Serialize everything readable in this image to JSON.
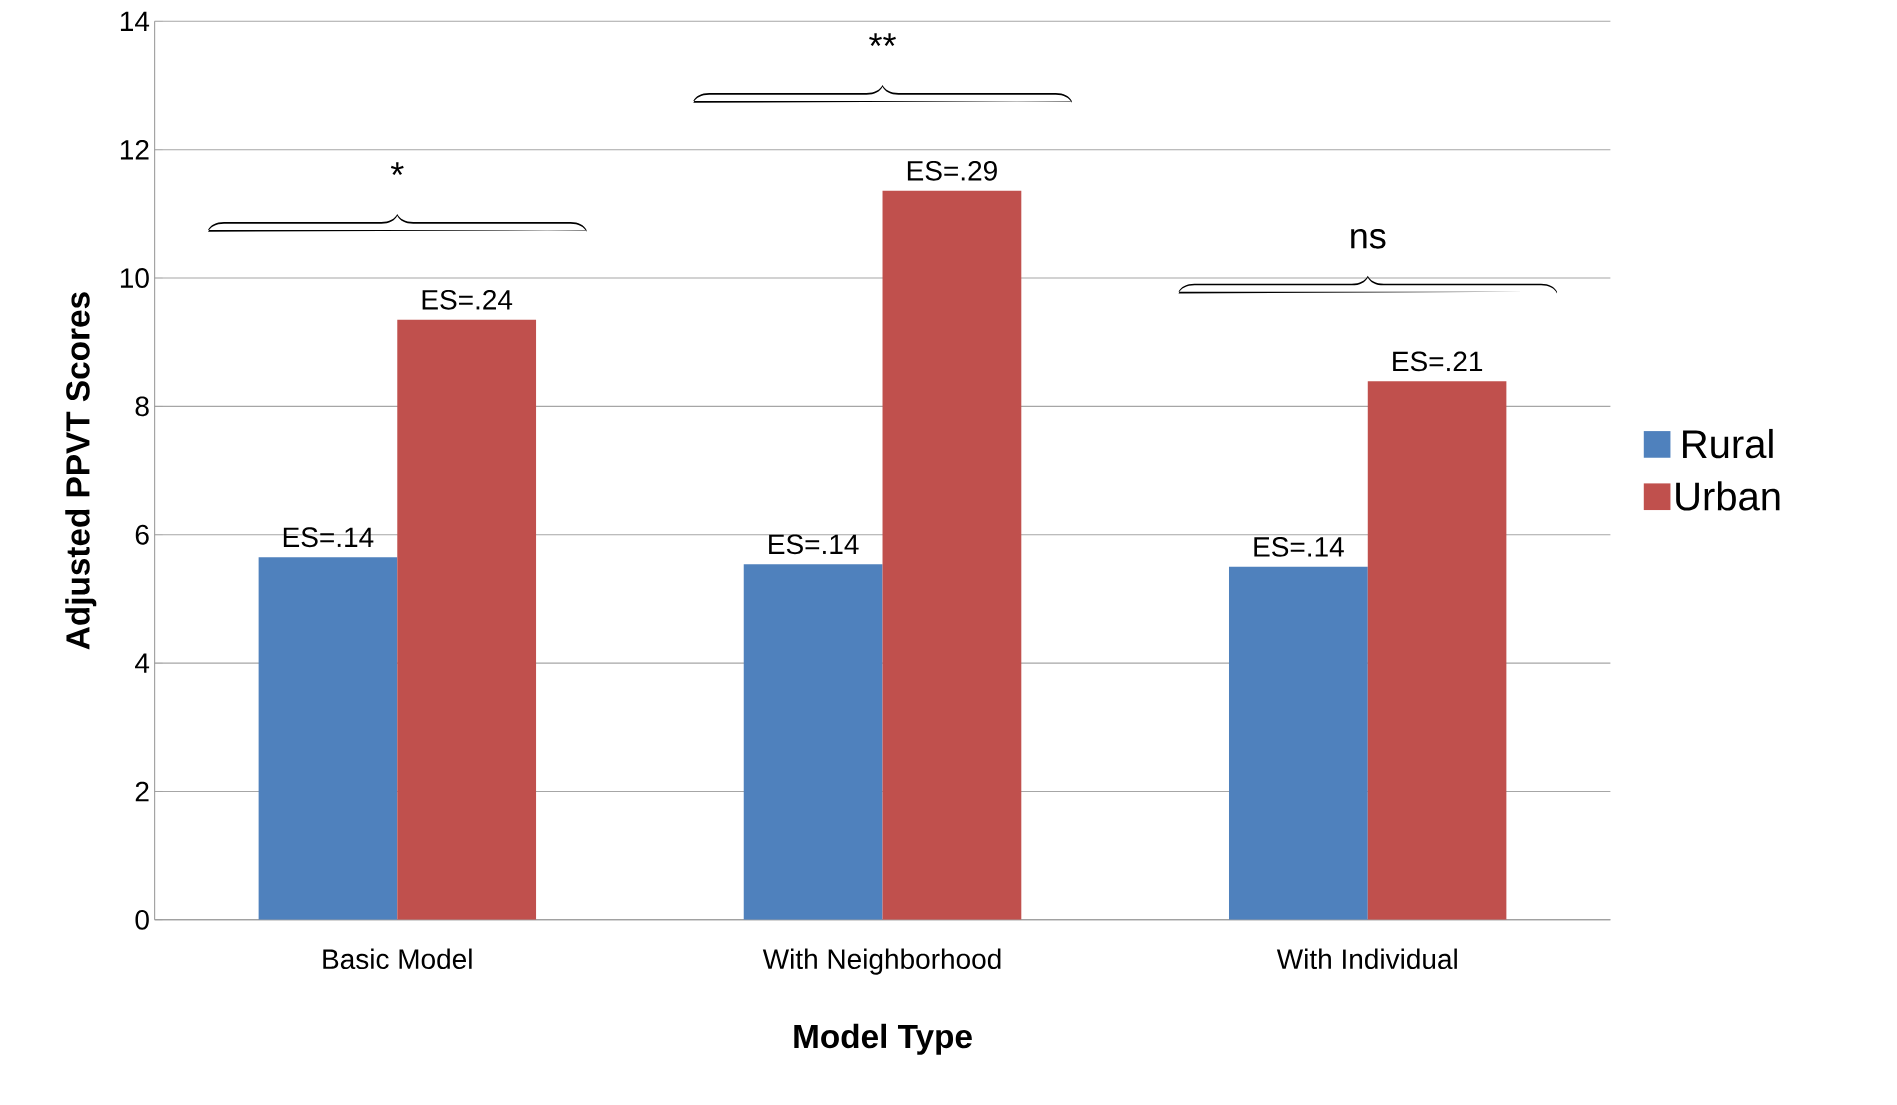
{
  "chart_data": {
    "type": "bar",
    "xlabel": "Model Type",
    "ylabel": "Adjusted PPVT Scores",
    "categories": [
      "Basic Model",
      "With Neighborhood",
      "With Individual"
    ],
    "series": [
      {
        "name": "Rural",
        "color": "#4f81bd",
        "values": [
          5.65,
          5.54,
          5.5
        ]
      },
      {
        "name": "Urban",
        "color": "#c0504d",
        "values": [
          9.35,
          11.36,
          8.39
        ]
      }
    ],
    "annotations": [
      "ES=.14",
      "ES=.14",
      "ES=.14",
      "ES=.24",
      "ES=.29",
      "ES=.21",
      "*",
      "**",
      "ns"
    ],
    "ylim": [
      0,
      14
    ],
    "yticks": [
      0,
      2,
      4,
      6,
      8,
      10,
      12,
      14
    ],
    "grid": "y",
    "legend": "right"
  }
}
